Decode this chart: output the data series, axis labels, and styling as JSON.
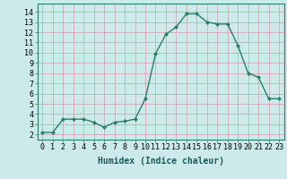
{
  "x": [
    0,
    1,
    2,
    3,
    4,
    5,
    6,
    7,
    8,
    9,
    10,
    11,
    12,
    13,
    14,
    15,
    16,
    17,
    18,
    19,
    20,
    21,
    22,
    23
  ],
  "y": [
    2.2,
    2.2,
    3.5,
    3.5,
    3.5,
    3.2,
    2.7,
    3.2,
    3.3,
    3.5,
    5.5,
    9.9,
    11.8,
    12.5,
    13.8,
    13.8,
    13.0,
    12.8,
    12.8,
    10.7,
    8.0,
    7.6,
    5.5,
    5.5
  ],
  "line_color": "#2d7d6e",
  "marker": "D",
  "marker_size": 2.0,
  "bg_color": "#cceaea",
  "grid_color_v": "#d0a0a0",
  "grid_color_h": "#d0a0a0",
  "xlabel": "Humidex (Indice chaleur)",
  "ylim": [
    1.5,
    14.8
  ],
  "xlim": [
    -0.5,
    23.5
  ],
  "yticks": [
    2,
    3,
    4,
    5,
    6,
    7,
    8,
    9,
    10,
    11,
    12,
    13,
    14
  ],
  "xticks": [
    0,
    1,
    2,
    3,
    4,
    5,
    6,
    7,
    8,
    9,
    10,
    11,
    12,
    13,
    14,
    15,
    16,
    17,
    18,
    19,
    20,
    21,
    22,
    23
  ],
  "xlabel_fontsize": 7,
  "tick_fontsize": 6,
  "line_width": 1.0
}
